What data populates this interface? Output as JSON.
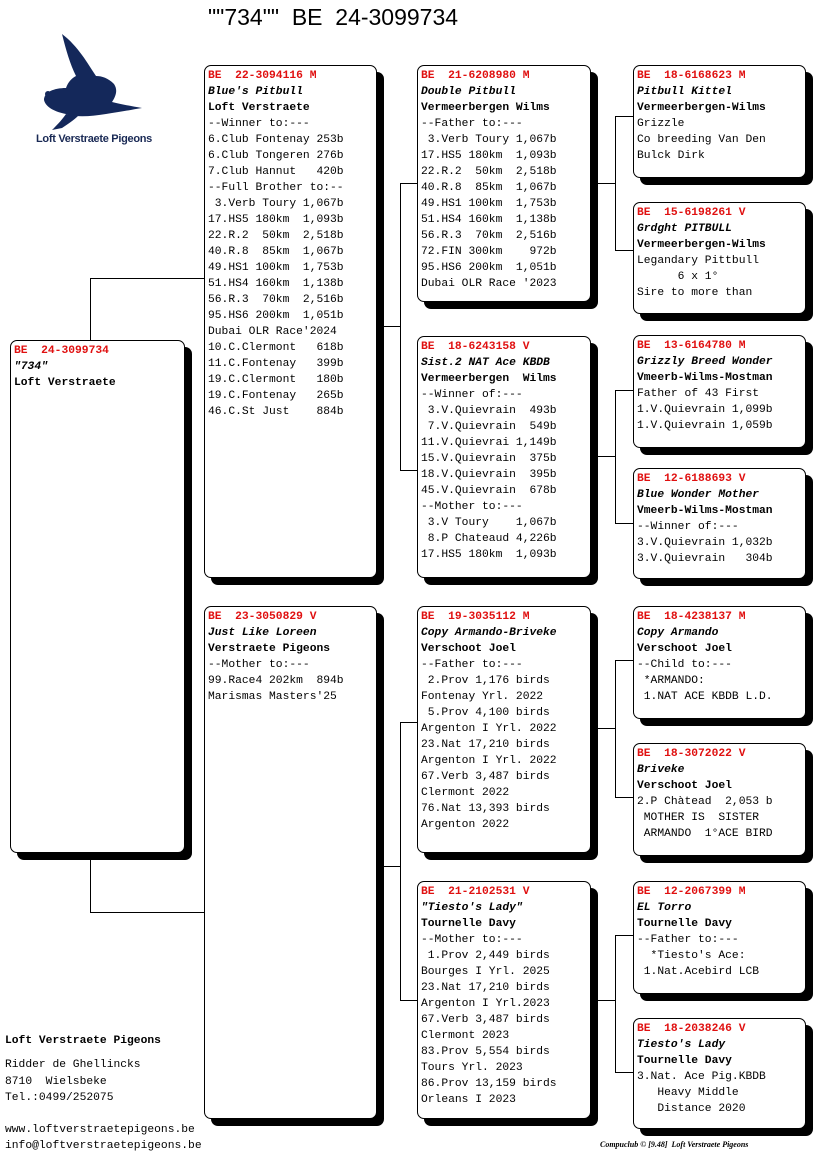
{
  "title": "\"\"734\"\"  BE  24-3099734",
  "logo": {
    "text": "Loft Verstraete Pigeons",
    "color": "#14285a",
    "icon": "pigeon-icon"
  },
  "colors": {
    "ring": "#e01010"
  },
  "subject": {
    "lines": [
      "BE  24-3099734",
      "\"734\"",
      "Loft Verstraete"
    ]
  },
  "sire": {
    "lines": [
      "BE  22-3094116 M",
      "Blue's Pitbull",
      "Loft Verstraete",
      "--Winner to:---",
      "6.Club Fontenay 253b",
      "6.Club Tongeren 276b",
      "7.Club Hannut   420b",
      "--Full Brother to:--",
      " 3.Verb Toury 1,067b",
      "17.HS5 180km  1,093b",
      "22.R.2  50km  2,518b",
      "40.R.8  85km  1,067b",
      "49.HS1 100km  1,753b",
      "51.HS4 160km  1,138b",
      "56.R.3  70km  2,516b",
      "95.HS6 200km  1,051b",
      "Dubai OLR Race'2024",
      "10.C.Clermont   618b",
      "11.C.Fontenay   399b",
      "19.C.Clermont   180b",
      "19.C.Fontenay   265b",
      "46.C.St Just    884b"
    ]
  },
  "dam": {
    "lines": [
      "BE  23-3050829 V",
      "Just Like Loreen",
      "Verstraete Pigeons",
      "--Mother to:---",
      "99.Race4 202km  894b",
      "Marismas Masters'25"
    ]
  },
  "ss": {
    "lines": [
      "BE  21-6208980 M",
      "Double Pitbull",
      "Vermeerbergen Wilms",
      "--Father to:---",
      " 3.Verb Toury 1,067b",
      "17.HS5 180km  1,093b",
      "22.R.2  50km  2,518b",
      "40.R.8  85km  1,067b",
      "49.HS1 100km  1,753b",
      "51.HS4 160km  1,138b",
      "56.R.3  70km  2,516b",
      "72.FIN 300km    972b",
      "95.HS6 200km  1,051b",
      "Dubai OLR Race '2023"
    ]
  },
  "sd": {
    "lines": [
      "BE  18-6243158 V",
      "Sist.2 NAT Ace KBDB",
      "Vermeerbergen  Wilms",
      "--Winner of:---",
      " 3.V.Quievrain  493b",
      " 7.V.Quievrain  549b",
      "11.V.Quievrai 1,149b",
      "15.V.Quievrain  375b",
      "18.V.Quievrain  395b",
      "45.V.Quievrain  678b",
      "--Mother to:---",
      " 3.V Toury    1,067b",
      " 8.P Chateaud 4,226b",
      "17.HS5 180km  1,093b"
    ]
  },
  "ds": {
    "lines": [
      "BE  19-3035112 M",
      "Copy Armando-Briveke",
      "Verschoot Joel",
      "--Father to:---",
      " 2.Prov 1,176 birds",
      "Fontenay Yrl. 2022",
      " 5.Prov 4,100 birds",
      "Argenton I Yrl. 2022",
      "23.Nat 17,210 birds",
      "Argenton I Yrl. 2022",
      "67.Verb 3,487 birds",
      "Clermont 2022",
      "76.Nat 13,393 birds",
      "Argenton 2022"
    ]
  },
  "dd": {
    "lines": [
      "BE  21-2102531 V",
      "\"Tiesto's Lady\"",
      "Tournelle Davy",
      "--Mother to:---",
      " 1.Prov 2,449 birds",
      "Bourges I Yrl. 2025",
      "23.Nat 17,210 birds",
      "Argenton I Yrl.2023",
      "67.Verb 3,487 birds",
      "Clermont 2023",
      "83.Prov 5,554 birds",
      "Tours Yrl. 2023",
      "86.Prov 13,159 birds",
      "Orleans I 2023"
    ]
  },
  "sss": {
    "lines": [
      "BE  18-6168623 M",
      "Pitbull Kittel",
      "Vermeerbergen-Wilms",
      "Grizzle",
      "Co breeding Van Den",
      "Bulck Dirk"
    ]
  },
  "ssd": {
    "lines": [
      "BE  15-6198261 V",
      "Grdght PITBULL",
      "Vermeerbergen-Wilms",
      "Legandary Pittbull",
      "      6 x 1°",
      "Sire to more than"
    ]
  },
  "sds": {
    "lines": [
      "BE  13-6164780 M",
      "Grizzly Breed Wonder",
      "Vmeerb-Wilms-Mostman",
      "Father of 43 First",
      "1.V.Quievrain 1,099b",
      "1.V.Quievrain 1,059b"
    ]
  },
  "sdd": {
    "lines": [
      "BE  12-6188693 V",
      "Blue Wonder Mother",
      "Vmeerb-Wilms-Mostman",
      "--Winner of:---",
      "3.V.Quievrain 1,032b",
      "3.V.Quievrain   304b"
    ]
  },
  "dss": {
    "lines": [
      "BE  18-4238137 M",
      "Copy Armando",
      "Verschoot Joel",
      "--Child to:---",
      " *ARMANDO:",
      " 1.NAT ACE KBDB L.D."
    ]
  },
  "dsd": {
    "lines": [
      "BE  18-3072022 V",
      "Briveke",
      "Verschoot Joel",
      "2.P Chàtead  2,053 b",
      " MOTHER IS  SISTER",
      " ARMANDO  1°ACE BIRD"
    ]
  },
  "dds": {
    "lines": [
      "BE  12-2067399 M",
      "EL Torro",
      "Tournelle Davy",
      "--Father to:---",
      "  *Tiesto's Ace:",
      " 1.Nat.Acebird LCB"
    ]
  },
  "ddd": {
    "lines": [
      "BE  18-2038246 V",
      "Tiesto's Lady",
      "Tournelle Davy",
      "3.Nat. Ace Pig.KBDB",
      "   Heavy Middle",
      "   Distance 2020"
    ]
  },
  "owner": {
    "name": "Loft Verstraete Pigeons",
    "street": "Ridder de Ghellincks",
    "city": "8710  Wielsbeke",
    "phone": "Tel.:0499/252075",
    "website": "www.loftverstraetepigeons.be",
    "email": "info@loftverstraetepigeons.be"
  },
  "footer": "Compuclub © [9.48]  Loft Verstraete Pigeons"
}
